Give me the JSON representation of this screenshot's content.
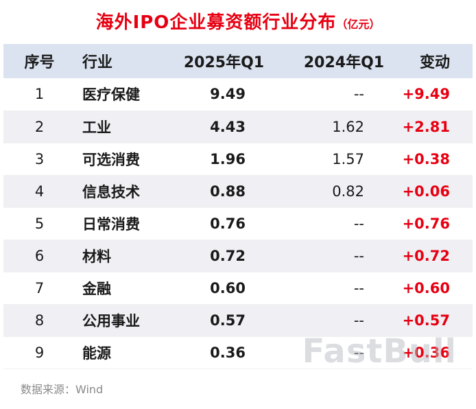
{
  "chart_data": {
    "type": "table",
    "title": "海外IPO企业募资额行业分布",
    "unit_label": "（亿元）",
    "columns": [
      "序号",
      "行业",
      "2025年Q1",
      "2024年Q1",
      "变动"
    ],
    "rows": [
      {
        "no": "1",
        "industry": "医疗保健",
        "q1_2025": "9.49",
        "q1_2024": "--",
        "change": "+9.49"
      },
      {
        "no": "2",
        "industry": "工业",
        "q1_2025": "4.43",
        "q1_2024": "1.62",
        "change": "+2.81"
      },
      {
        "no": "3",
        "industry": "可选消费",
        "q1_2025": "1.96",
        "q1_2024": "1.57",
        "change": "+0.38"
      },
      {
        "no": "4",
        "industry": "信息技术",
        "q1_2025": "0.88",
        "q1_2024": "0.82",
        "change": "+0.06"
      },
      {
        "no": "5",
        "industry": "日常消费",
        "q1_2025": "0.76",
        "q1_2024": "--",
        "change": "+0.76"
      },
      {
        "no": "6",
        "industry": "材料",
        "q1_2025": "0.72",
        "q1_2024": "--",
        "change": "+0.72"
      },
      {
        "no": "7",
        "industry": "金融",
        "q1_2025": "0.60",
        "q1_2024": "--",
        "change": "+0.60"
      },
      {
        "no": "8",
        "industry": "公用事业",
        "q1_2025": "0.57",
        "q1_2024": "--",
        "change": "+0.57"
      },
      {
        "no": "9",
        "industry": "能源",
        "q1_2025": "0.36",
        "q1_2024": "--",
        "change": "+0.36"
      }
    ],
    "source": "数据来源：Wind",
    "layout": {
      "grid": "alternating-row-shading",
      "legend": "none"
    }
  },
  "watermark": "FastBull",
  "colors": {
    "accent_red": "#e60012",
    "header_bg": "#dbe3f0",
    "alt_row_bg": "#efeff4",
    "source_gray": "#8a8a8a",
    "watermark_gray": "#b9bcc3"
  }
}
